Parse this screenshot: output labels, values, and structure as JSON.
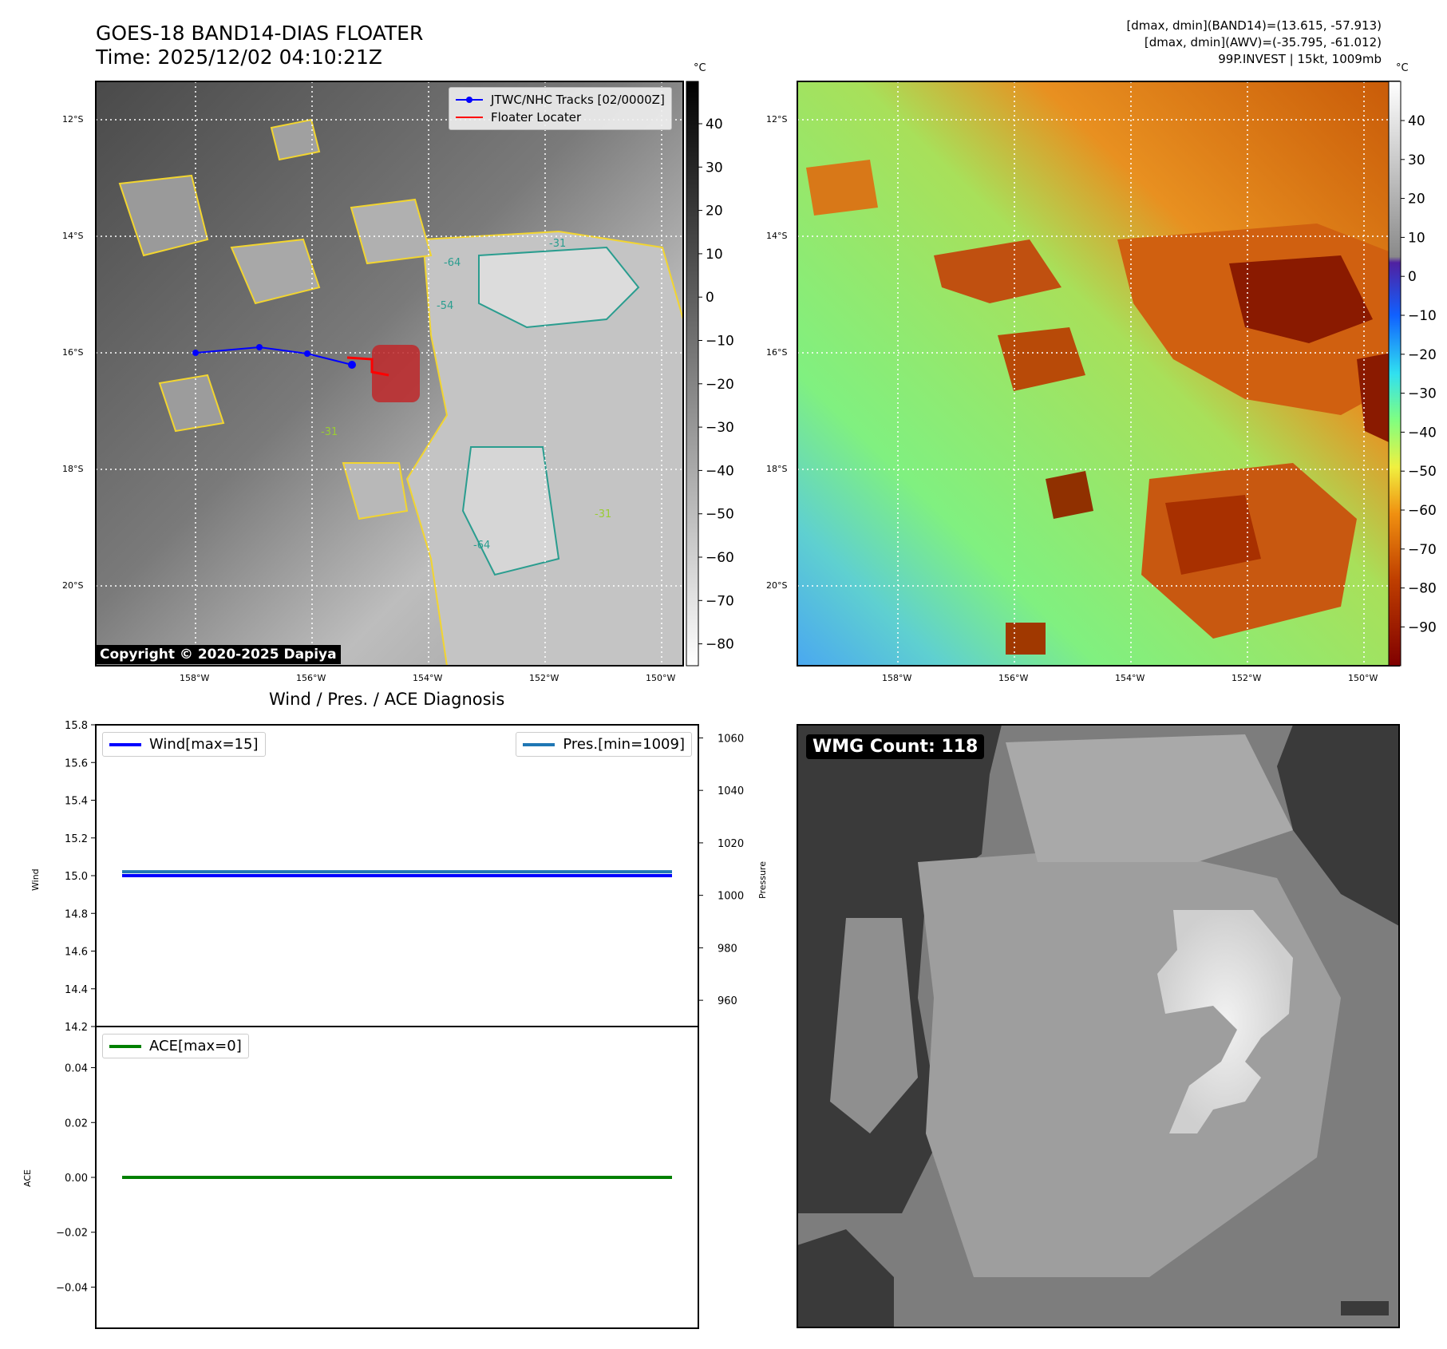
{
  "header": {
    "title_line1": "GOES-18 BAND14-DIAS FLOATER",
    "title_line2": "Time: 2025/12/02 04:10:21Z",
    "stats_line1": "[dmax, dmin](BAND14)=(13.615, -57.913)",
    "stats_line2": "[dmax, dmin](AWV)=(-35.795, -61.012)",
    "stats_line3": "99P.INVEST | 15kt, 1009mb"
  },
  "colorbar_unit": "°C",
  "map_ticks": {
    "lat_labels": [
      "12°S",
      "14°S",
      "16°S",
      "18°S",
      "20°S"
    ],
    "lon_labels": [
      "158°W",
      "156°W",
      "154°W",
      "152°W",
      "150°W"
    ]
  },
  "ir_colorbar": {
    "ticks": [
      "40",
      "30",
      "20",
      "10",
      "0",
      "−10",
      "−20",
      "−30",
      "−40",
      "−50",
      "−60",
      "−70",
      "−80"
    ]
  },
  "enh_colorbar": {
    "ticks": [
      "40",
      "30",
      "20",
      "10",
      "0",
      "−10",
      "−20",
      "−30",
      "−40",
      "−50",
      "−60",
      "−70",
      "−80",
      "−90"
    ]
  },
  "map_legend": {
    "track_label": "JTWC/NHC Tracks [02/0000Z]",
    "floater_label": "Floater Locater"
  },
  "contour_labels": [
    "-31",
    "-54",
    "-64"
  ],
  "copyright": "Copyright © 2020-2025 Dapiya",
  "wmg_count": "WMG Count: 118",
  "diagnosis": {
    "title": "Wind / Pres. / ACE Diagnosis",
    "wind_legend": "Wind[max=15]",
    "pres_legend": "Pres.[min=1009]",
    "ace_legend": "ACE[max=0]",
    "wind_axis_label": "Wind",
    "pressure_axis_label": "Pressure",
    "ace_axis_label": "ACE"
  },
  "colors": {
    "wind": "#0000ff",
    "pressure": "#1f77b4",
    "ace": "#008000",
    "track": "#0000ff",
    "floater": "#ff0000"
  },
  "chart_data": [
    {
      "type": "line",
      "title": "Wind / Pres. / ACE Diagnosis",
      "ylabel": "Wind",
      "ylim": [
        14.2,
        15.8
      ],
      "yticks": [
        "15.8",
        "15.6",
        "15.4",
        "15.2",
        "15.0",
        "14.8",
        "14.6",
        "14.4",
        "14.2"
      ],
      "series": [
        {
          "name": "Wind[max=15]",
          "values": [
            15,
            15
          ]
        }
      ]
    },
    {
      "type": "line",
      "ylabel": "Pressure",
      "ylim": [
        950,
        1065
      ],
      "yticks": [
        "1060",
        "1040",
        "1020",
        "1000",
        "980",
        "960"
      ],
      "series": [
        {
          "name": "Pres.[min=1009]",
          "values": [
            1009,
            1009
          ]
        }
      ]
    },
    {
      "type": "line",
      "ylabel": "ACE",
      "ylim": [
        -0.055,
        0.055
      ],
      "yticks": [
        "0.04",
        "0.02",
        "0.00",
        "−0.02",
        "−0.04"
      ],
      "series": [
        {
          "name": "ACE[max=0]",
          "values": [
            0,
            0
          ]
        }
      ]
    }
  ]
}
